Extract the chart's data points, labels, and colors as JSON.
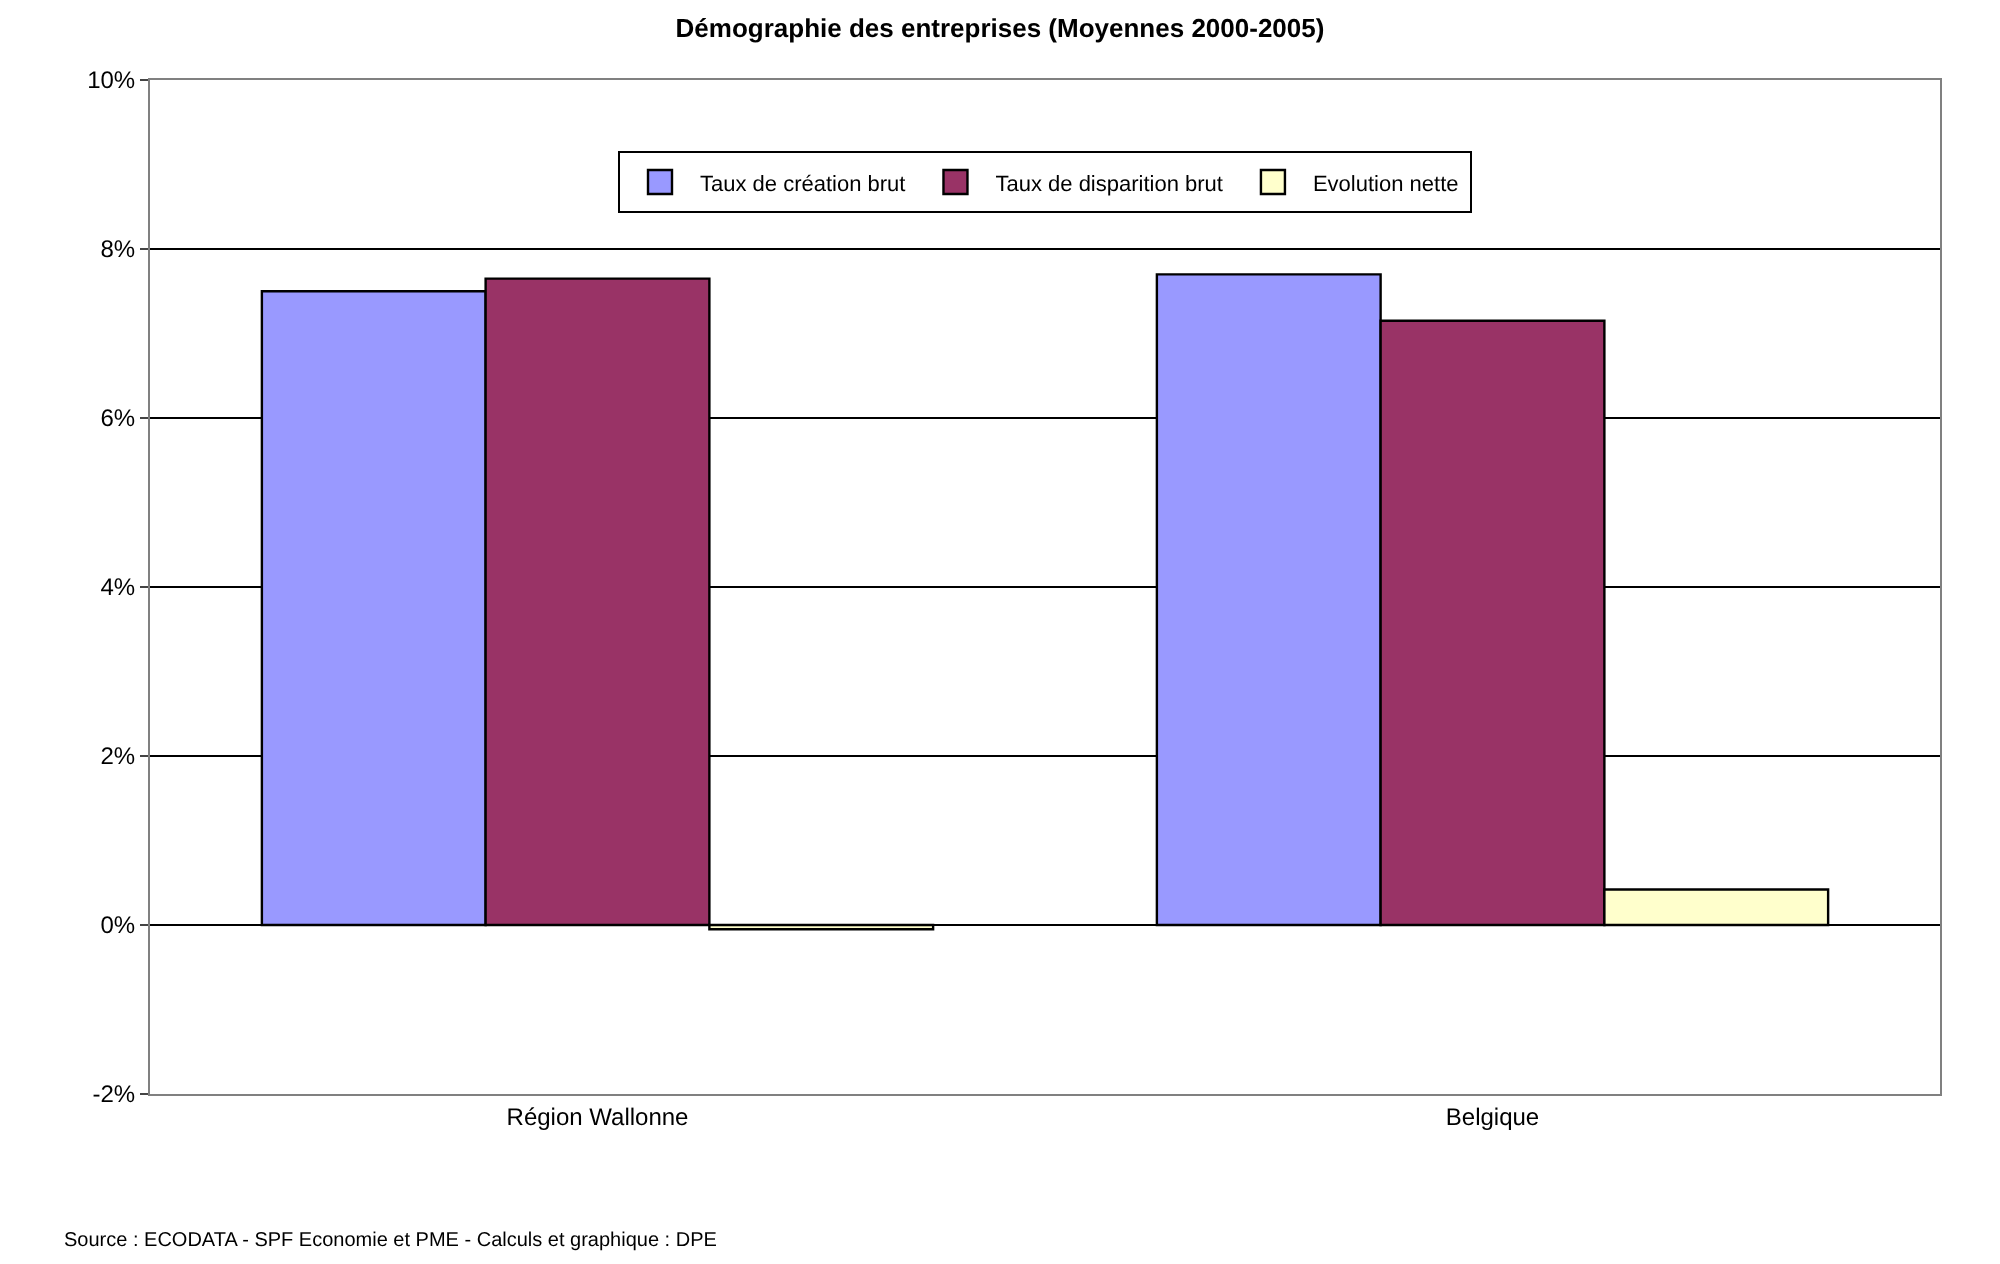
{
  "chart_data": {
    "type": "bar",
    "title": "Démographie des entreprises (Moyennes 2000-2005)",
    "categories": [
      "Région Wallonne",
      "Belgique"
    ],
    "series": [
      {
        "name": "Taux de création brut",
        "color": "#9999ff",
        "values": [
          7.5,
          7.7
        ]
      },
      {
        "name": "Taux de disparition brut",
        "color": "#993366",
        "values": [
          7.65,
          7.15
        ]
      },
      {
        "name": "Evolution nette",
        "color": "#ffffcc",
        "values": [
          -0.05,
          0.42
        ]
      }
    ],
    "ylim": [
      -2,
      10
    ],
    "yticks": [
      {
        "value": -2,
        "label": "-2%"
      },
      {
        "value": 0,
        "label": "0%"
      },
      {
        "value": 2,
        "label": "2%"
      },
      {
        "value": 4,
        "label": "4%"
      },
      {
        "value": 6,
        "label": "6%"
      },
      {
        "value": 8,
        "label": "8%"
      },
      {
        "value": 10,
        "label": "10%"
      }
    ],
    "grid": "y",
    "legend": "top",
    "annotations": [
      "Source : ECODATA - SPF Economie et PME - Calculs et graphique : DPE"
    ]
  }
}
